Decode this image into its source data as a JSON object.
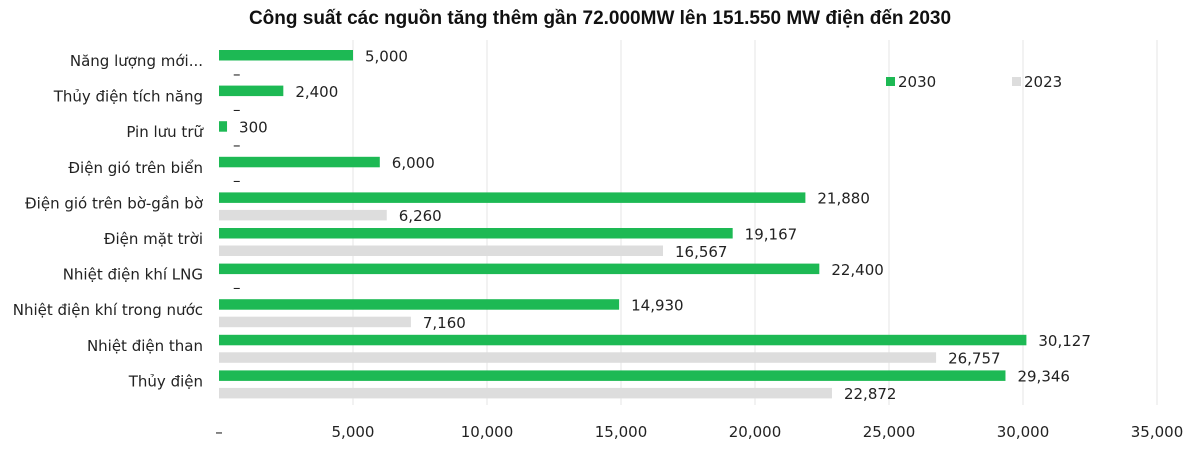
{
  "chart_data": {
    "type": "bar",
    "orientation": "horizontal",
    "title": "Công suất các nguồn tăng thêm gần 72.000MW lên 151.550 MW điện đến 2030",
    "categories": [
      "Năng lượng mới...",
      "Thủy điện tích năng",
      "Pin lưu trữ",
      "Điện gió trên biển",
      "Điện gió trên bờ-gần bờ",
      "Điện mặt trời",
      "Nhiệt điện khí LNG",
      "Nhiệt điện khí trong nước",
      "Nhiệt điện than",
      "Thủy điện"
    ],
    "series": [
      {
        "name": "2030",
        "color": "#1db954",
        "values": [
          5000,
          2400,
          300,
          6000,
          21880,
          19167,
          22400,
          14930,
          30127,
          29346
        ],
        "labels": [
          "5,000",
          "2,400",
          "300",
          "6,000",
          "21,880",
          "19,167",
          "22,400",
          "14,930",
          "30,127",
          "29,346"
        ]
      },
      {
        "name": "2023",
        "color": "#dddddd",
        "values": [
          0,
          0,
          0,
          0,
          6260,
          16567,
          0,
          7160,
          26757,
          22872
        ],
        "labels": [
          "–",
          "–",
          "–",
          "–",
          "6,260",
          "16,567",
          "–",
          "7,160",
          "26,757",
          "22,872"
        ]
      }
    ],
    "xlim": [
      0,
      35000
    ],
    "xticks": [
      0,
      5000,
      10000,
      15000,
      20000,
      25000,
      30000,
      35000
    ],
    "xtick_labels": [
      "–",
      "5,000",
      "10,000",
      "15,000",
      "20,000",
      "25,000",
      "30,000",
      "35,000"
    ],
    "grid": "vertical",
    "legend_position": "top-right"
  }
}
